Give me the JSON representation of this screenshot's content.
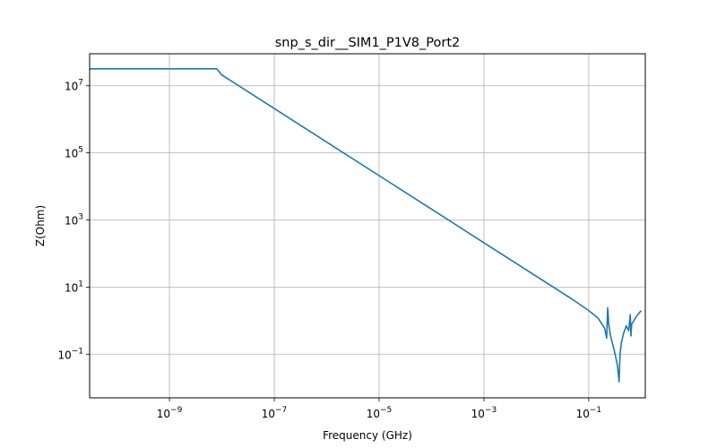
{
  "chart_data": {
    "type": "line",
    "title": "snp_s_dir__SIM1_P1V8_Port2",
    "xlabel": "Frequency (GHz)",
    "ylabel": "Z(Ohm)",
    "xscale": "log",
    "yscale": "log",
    "xlim": [
      3e-11,
      1.2
    ],
    "ylim": [
      0.005,
      90000000.0
    ],
    "grid": true,
    "color": "#1f77b4",
    "x_ticks": [
      {
        "value": 1e-09,
        "base": "10",
        "exp": "−9"
      },
      {
        "value": 1e-07,
        "base": "10",
        "exp": "−7"
      },
      {
        "value": 1e-05,
        "base": "10",
        "exp": "−5"
      },
      {
        "value": 0.001,
        "base": "10",
        "exp": "−3"
      },
      {
        "value": 0.1,
        "base": "10",
        "exp": "−1"
      }
    ],
    "y_ticks": [
      {
        "value": 10000000.0,
        "base": "10",
        "exp": "7"
      },
      {
        "value": 100000.0,
        "base": "10",
        "exp": "5"
      },
      {
        "value": 1000.0,
        "base": "10",
        "exp": "3"
      },
      {
        "value": 10.0,
        "base": "10",
        "exp": "1"
      },
      {
        "value": 0.1,
        "base": "10",
        "exp": "−1"
      }
    ],
    "series": [
      {
        "x": [
          3e-11,
          8e-09,
          1e-08,
          1e-07,
          1e-06,
          1e-05,
          0.0001,
          0.001,
          0.01,
          0.05,
          0.1,
          0.15,
          0.2,
          0.22,
          0.23,
          0.235,
          0.24,
          0.26,
          0.3,
          0.35,
          0.38,
          0.39,
          0.4,
          0.42,
          0.46,
          0.52,
          0.58,
          0.62,
          0.64,
          0.66,
          0.7,
          0.8,
          1.0
        ],
        "y": [
          32000000.0,
          32000000.0,
          21000000.0,
          2100000.0,
          210000.0,
          21000.0,
          2100,
          210,
          21,
          4.2,
          2.0,
          1.2,
          0.6,
          0.3,
          2.4,
          1.5,
          0.8,
          0.35,
          0.15,
          0.05,
          0.015,
          0.06,
          0.12,
          0.22,
          0.4,
          0.7,
          0.5,
          1.5,
          0.35,
          0.8,
          0.9,
          1.3,
          2.0
        ]
      }
    ]
  }
}
